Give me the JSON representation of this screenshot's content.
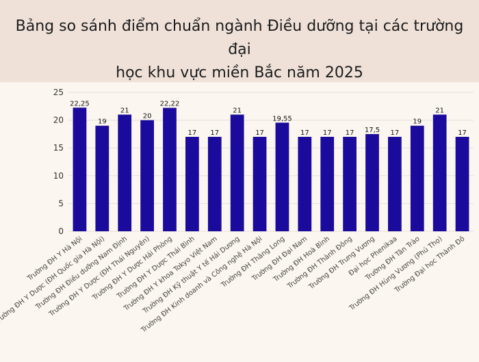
{
  "header": {
    "title_line1": "Bảng so sánh điểm chuẩn ngành Điều dưỡng tại các trường đại",
    "title_line2": "học khu vực miền Bắc năm 2025"
  },
  "chart_data": {
    "type": "bar",
    "title": "Bảng so sánh điểm chuẩn ngành Điều dưỡng tại các trường đại học khu vực miền Bắc năm 2025",
    "xlabel": "",
    "ylabel": "",
    "ylim": [
      0,
      25
    ],
    "yticks": [
      0,
      5,
      10,
      15,
      20,
      25
    ],
    "grid": true,
    "bar_color": "#1a0b9c",
    "categories": [
      "Trường ĐH Y Hà Nội",
      "Trường ĐH Y Dược (ĐH Quốc gia Hà Nội)",
      "Trường ĐH Điều dưỡng Nam Định",
      "Trường ĐH Y Dược (ĐH Thái Nguyên)",
      "Trường ĐH Y Dược Hải Phòng",
      "Trường ĐH Y Dược Thái Bình",
      "Trường ĐH Y khoa Tokyo Việt Nam",
      "Trường ĐH Kỹ thuật Y tế Hải Dương",
      "Trường ĐH Kinh doanh và Công nghệ Hà Nội",
      "Trường ĐH Thăng Long",
      "Trường ĐH Đại Nam",
      "Trường ĐH Hoà Bình",
      "Trường ĐH Thành Đông",
      "Trường ĐH Trưng Vương",
      "Đại học Phenikaa",
      "Trường ĐH Tân Trào",
      "Trường ĐH Hùng Vương (Phú Thọ)",
      "Trường Đại học Thành Đô"
    ],
    "values": [
      22.25,
      19,
      21,
      20,
      22.22,
      17,
      17,
      21,
      17,
      19.55,
      17,
      17,
      17,
      17.5,
      17,
      19,
      21,
      17
    ],
    "data_labels": [
      "22,25",
      "19",
      "21",
      "20",
      "22,22",
      "17",
      "17",
      "21",
      "17",
      "19,55",
      "17",
      "17",
      "17",
      "17,5",
      "17",
      "19",
      "21",
      "17"
    ]
  }
}
